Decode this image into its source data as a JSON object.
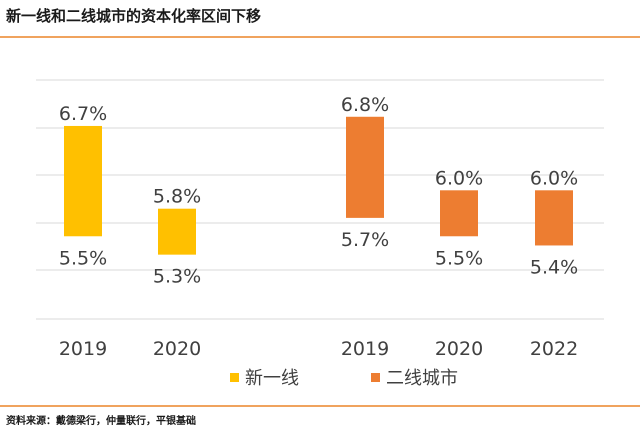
{
  "title": "新一线和二线城市的资本化率区间下移",
  "source": "资料来源：戴德梁行，仲量联行，平银基础",
  "colors": {
    "tier1_new": "#FFC000",
    "tier2": "#ED7D31",
    "grid": "#D9D9D9",
    "text": "#404040"
  },
  "legend": [
    {
      "name": "新一线",
      "color": "#FFC000"
    },
    {
      "name": "二线城市",
      "color": "#ED7D31"
    }
  ],
  "chart_data": {
    "type": "bar",
    "subtype": "floating-range",
    "title": "新一线和二线城市的资本化率区间下移",
    "xlabel": "",
    "ylabel": "",
    "ylim": [
      4.6,
      7.2
    ],
    "grid": true,
    "legend_position": "bottom",
    "series": [
      {
        "name": "新一线",
        "color": "#FFC000",
        "points": [
          {
            "category": "2019",
            "low": 5.5,
            "high": 6.7,
            "low_label": "5.5%",
            "high_label": "6.7%"
          },
          {
            "category": "2020",
            "low": 5.3,
            "high": 5.8,
            "low_label": "5.3%",
            "high_label": "5.8%"
          }
        ]
      },
      {
        "name": "二线城市",
        "color": "#ED7D31",
        "points": [
          {
            "category": "2019",
            "low": 5.7,
            "high": 6.8,
            "low_label": "5.7%",
            "high_label": "6.8%"
          },
          {
            "category": "2020",
            "low": 5.5,
            "high": 6.0,
            "low_label": "5.5%",
            "high_label": "6.0%"
          },
          {
            "category": "2022",
            "low": 5.4,
            "high": 6.0,
            "low_label": "5.4%",
            "high_label": "6.0%"
          }
        ]
      }
    ]
  }
}
